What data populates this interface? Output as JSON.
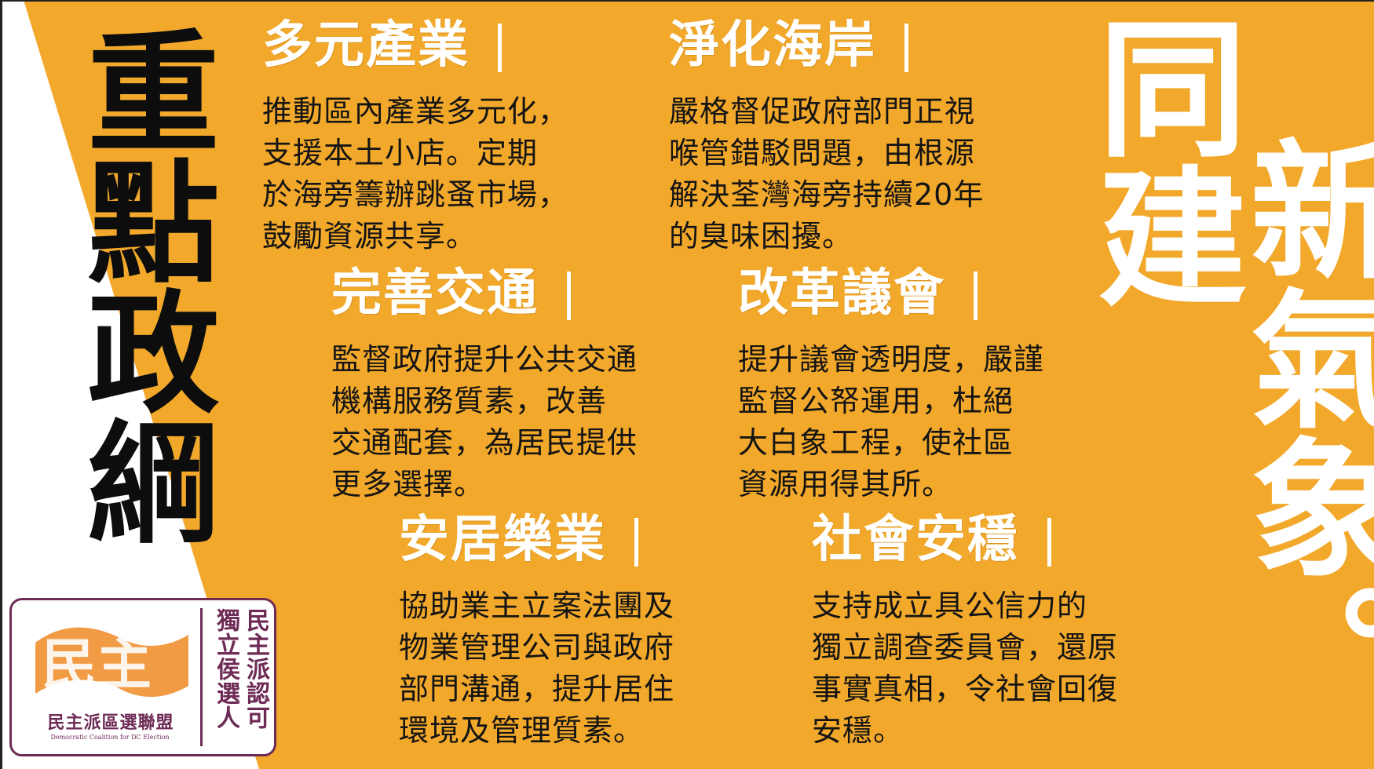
{
  "colors": {
    "background": "#f2a82a",
    "white_band": "#ffffff",
    "title_text": "#0d0d0d",
    "body_text": "#141414",
    "logo_accent": "#6d2b55",
    "logo_orange": "#f08a24"
  },
  "left_title": "重點政綱",
  "sections": [
    {
      "title": "多元產業",
      "lines": [
        "推動區內產業多元化，",
        "支援本土小店。定期",
        "於海旁籌辦跳蚤市場，",
        "鼓勵資源共享。"
      ]
    },
    {
      "title": "淨化海岸",
      "lines": [
        "嚴格督促政府部門正視",
        "喉管錯駁問題，由根源",
        "解決荃灣海旁持續20年",
        "的臭味困擾。"
      ]
    },
    {
      "title": "完善交通",
      "lines": [
        "監督政府提升公共交通",
        "機構服務質素，改善",
        "交通配套，為居民提供",
        "更多選擇。"
      ]
    },
    {
      "title": "改革議會",
      "lines": [
        "提升議會透明度，嚴謹",
        "監督公帑運用，杜絕",
        "大白象工程，使社區",
        "資源用得其所。"
      ]
    },
    {
      "title": "安居樂業",
      "lines": [
        "協助業主立案法團及",
        "物業管理公司與政府",
        "部門溝通，提升居住",
        "環境及管理質素。"
      ]
    },
    {
      "title": "社會安穩",
      "lines": [
        "支持成立具公信力的",
        "獨立調查委員會，還原",
        "事實真相，令社會回復",
        "安穩。"
      ]
    }
  ],
  "slogan": {
    "col1": "同建",
    "col2": "新氣象。"
  },
  "logo": {
    "mark_text": "民主",
    "org_name": "民主派區選聯盟",
    "org_name_en": "Democratic Coalition for DC Election",
    "endorse_col1": "民主派認可",
    "endorse_col2": "獨立侯選人"
  }
}
